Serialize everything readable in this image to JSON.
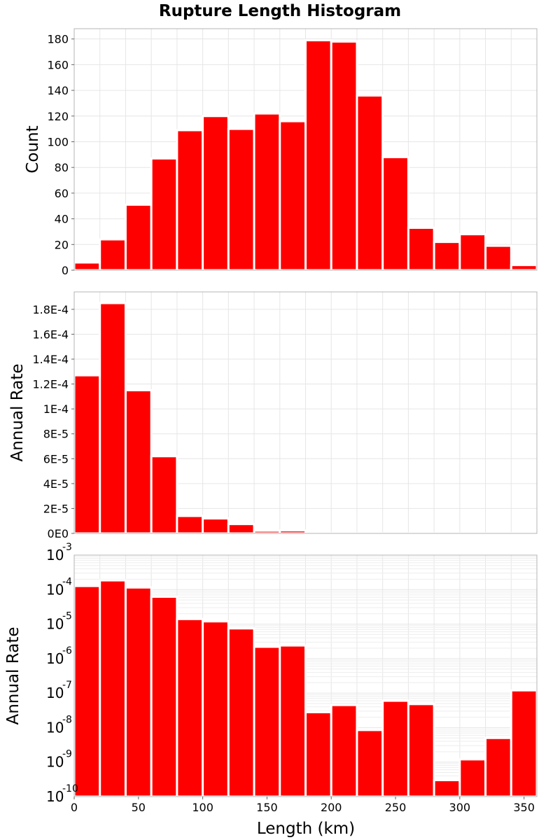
{
  "colors": {
    "bar": "#ff0000",
    "bar_edge": "#ffffff"
  },
  "title": "Rupture Length Histogram",
  "xlabel": "Length (km)",
  "chart_data": [
    {
      "type": "bar",
      "panel": "count",
      "title": "Rupture Length Histogram",
      "xlabel": "",
      "ylabel": "Count",
      "xlim": [
        0,
        360
      ],
      "ylim": [
        0,
        188
      ],
      "bin_width": 20,
      "x": [
        10,
        30,
        50,
        70,
        90,
        110,
        130,
        150,
        170,
        190,
        210,
        230,
        250,
        270,
        290,
        310,
        330,
        350
      ],
      "values": [
        6,
        24,
        51,
        87,
        109,
        120,
        110,
        122,
        116,
        179,
        178,
        136,
        88,
        33,
        22,
        28,
        19,
        4
      ],
      "yticks": [
        0,
        20,
        40,
        60,
        80,
        100,
        120,
        140,
        160,
        180
      ],
      "ytick_labels": [
        "0",
        "20",
        "40",
        "60",
        "80",
        "100",
        "120",
        "140",
        "160",
        "180"
      ],
      "grid": true
    },
    {
      "type": "bar",
      "panel": "rate-linear",
      "xlabel": "",
      "ylabel": "Annual Rate",
      "xlim": [
        0,
        360
      ],
      "ylim": [
        0,
        0.000194
      ],
      "bin_width": 20,
      "x": [
        10,
        30,
        50,
        70,
        90,
        110,
        130,
        150,
        170,
        190,
        210,
        230,
        250,
        270,
        290,
        310,
        330,
        350
      ],
      "values": [
        0.000127,
        0.000185,
        0.000115,
        6.2e-05,
        1.4e-05,
        1.2e-05,
        7.5e-06,
        2.2e-06,
        2.4e-06,
        2.8e-08,
        4.5e-08,
        8.5e-09,
        6e-08,
        4.8e-08,
        3e-10,
        1.2e-09,
        5e-09,
        1.2e-07
      ],
      "yticks": [
        0,
        2e-05,
        4e-05,
        6e-05,
        8e-05,
        0.0001,
        0.00012,
        0.00014,
        0.00016,
        0.00018
      ],
      "ytick_labels": [
        "0E0",
        "2E-5",
        "4E-5",
        "6E-5",
        "8E-5",
        "1E-4",
        "1.2E-4",
        "1.4E-4",
        "1.6E-4",
        "1.8E-4"
      ],
      "grid": true
    },
    {
      "type": "bar",
      "panel": "rate-log",
      "xlabel": "Length (km)",
      "ylabel": "Annual Rate",
      "xlim": [
        0,
        360
      ],
      "ylim": [
        1e-10,
        0.001
      ],
      "yscale": "log",
      "bin_width": 20,
      "x": [
        10,
        30,
        50,
        70,
        90,
        110,
        130,
        150,
        170,
        190,
        210,
        230,
        250,
        270,
        290,
        310,
        330,
        350
      ],
      "values": [
        0.000127,
        0.000185,
        0.000115,
        6.2e-05,
        1.4e-05,
        1.2e-05,
        7.5e-06,
        2.2e-06,
        2.4e-06,
        2.8e-08,
        4.5e-08,
        8.5e-09,
        6e-08,
        4.8e-08,
        3e-10,
        1.2e-09,
        5e-09,
        1.2e-07
      ],
      "yticks": [
        -10,
        -9,
        -8,
        -7,
        -6,
        -5,
        -4,
        -3
      ],
      "ytick_base": "10",
      "ytick_exponents": [
        "-10",
        "-9",
        "-8",
        "-7",
        "-6",
        "-5",
        "-4",
        "-3"
      ],
      "xticks": [
        0,
        50,
        100,
        150,
        200,
        250,
        300,
        350
      ],
      "xtick_labels": [
        "0",
        "50",
        "100",
        "150",
        "200",
        "250",
        "300",
        "350"
      ],
      "grid": true
    }
  ]
}
